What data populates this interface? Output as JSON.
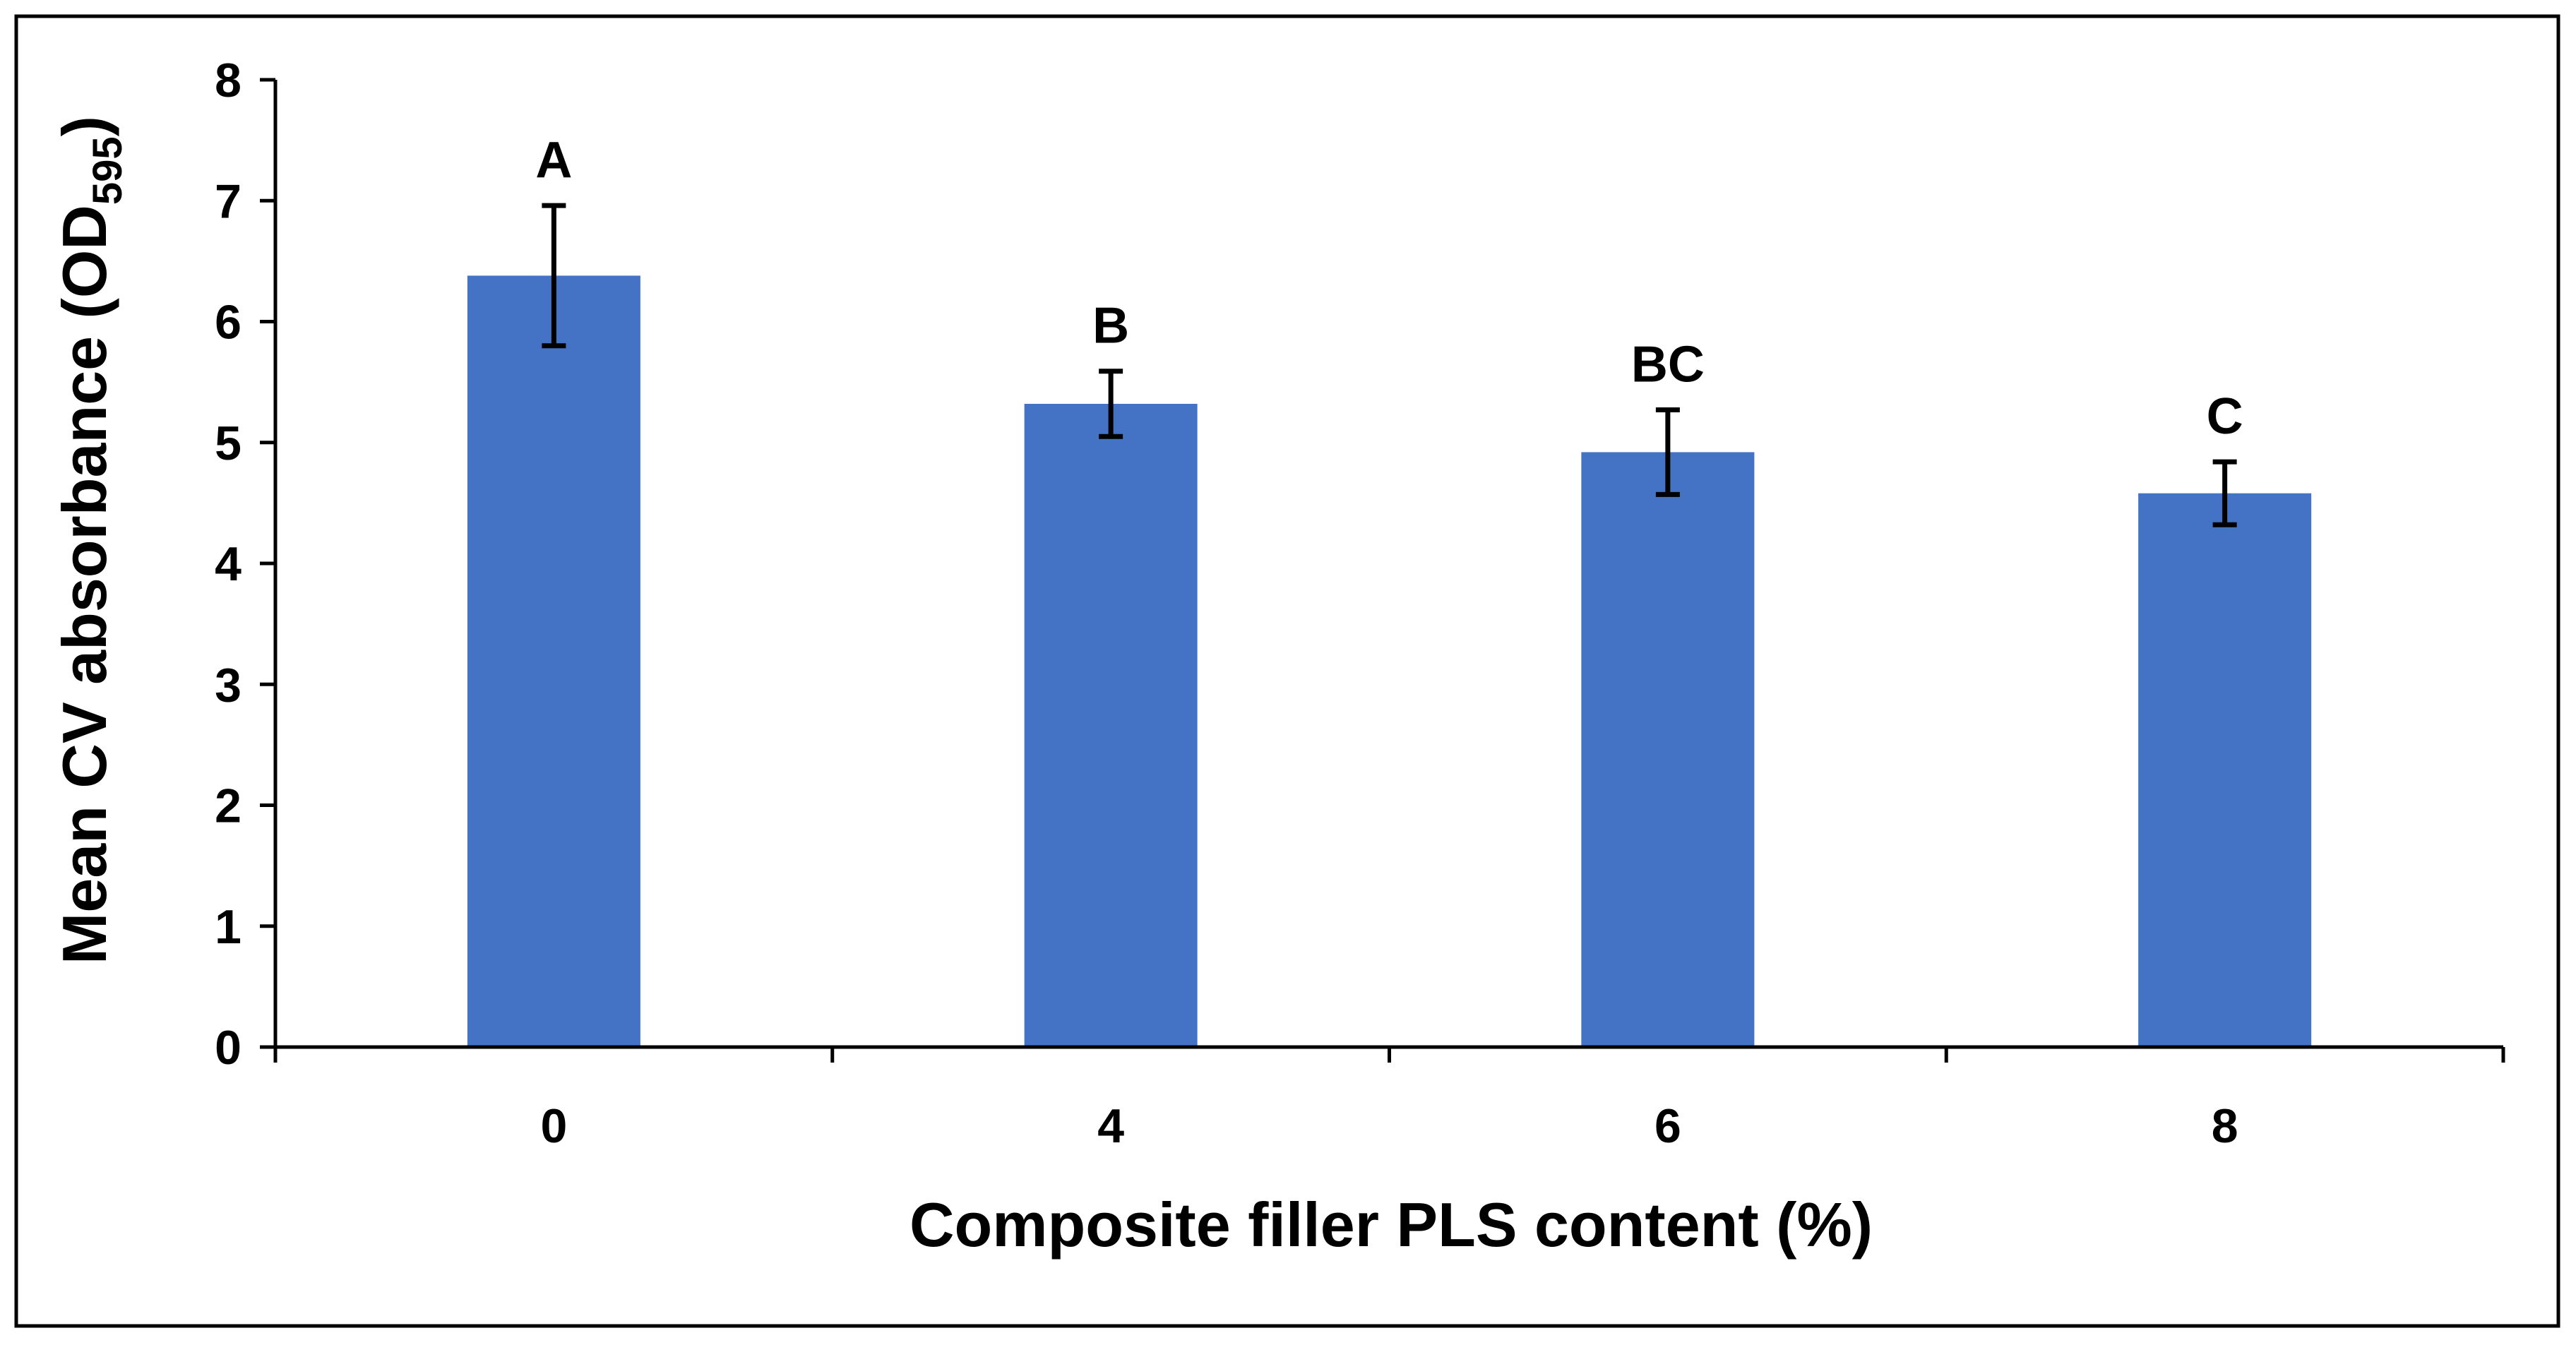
{
  "chart_data": {
    "type": "bar",
    "title": "",
    "xlabel": "Composite filler PLS content (%)",
    "ylabel": {
      "main": "Mean CV absorbance (OD",
      "subscript": "595",
      "close": ")"
    },
    "categories": [
      "0",
      "4",
      "6",
      "8"
    ],
    "values": [
      6.38,
      5.32,
      4.92,
      4.58
    ],
    "errors": [
      0.58,
      0.27,
      0.35,
      0.26
    ],
    "significance_labels": [
      "A",
      "B",
      "BC",
      "C"
    ],
    "ylim": [
      0,
      8
    ],
    "yticks": [
      "0",
      "1",
      "2",
      "3",
      "4",
      "5",
      "6",
      "7",
      "8"
    ],
    "grid": false,
    "legend": "none",
    "bar_color": "#4472C4",
    "error_bar_color": "#000000"
  }
}
